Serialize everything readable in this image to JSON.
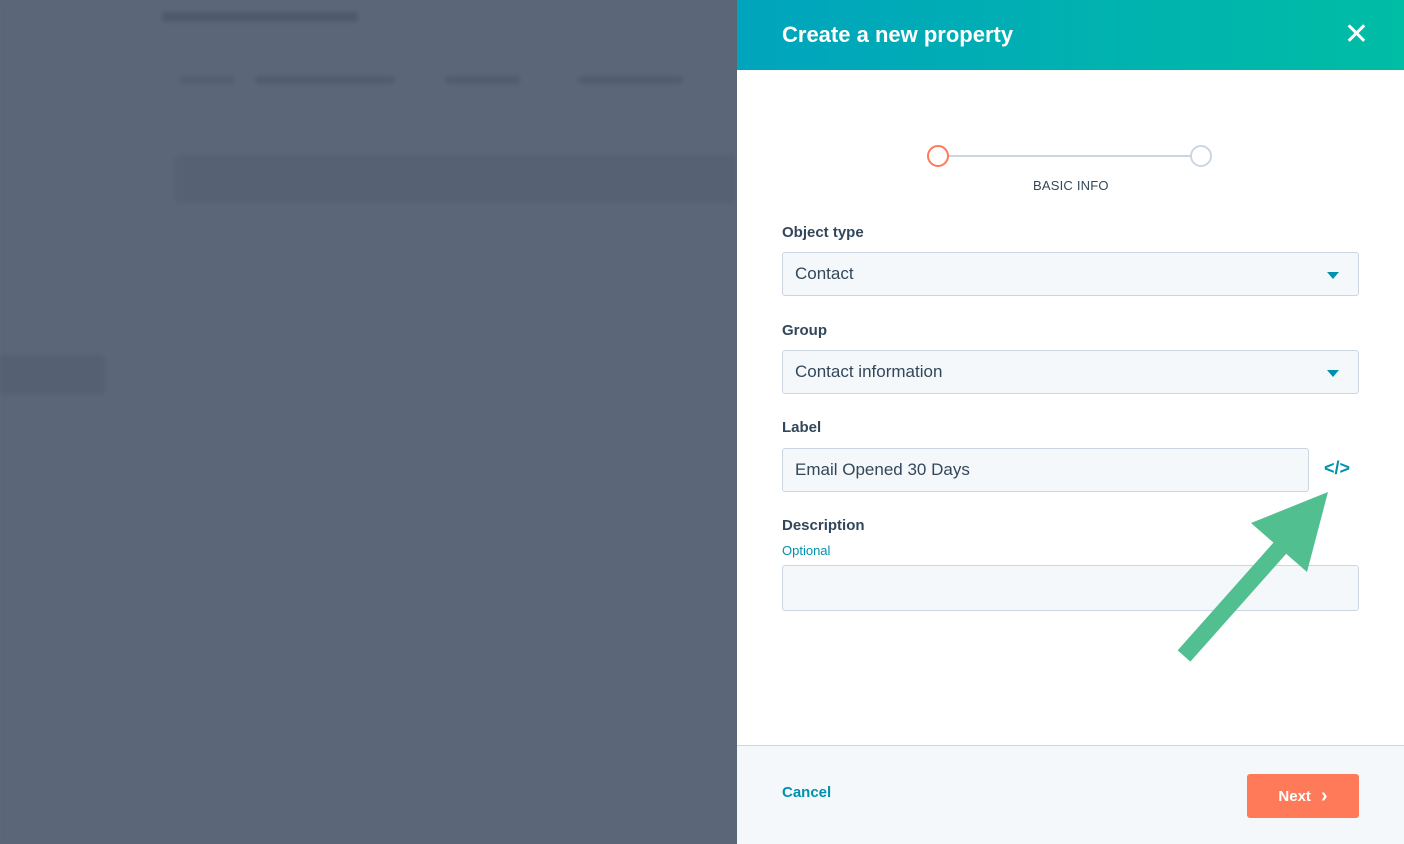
{
  "modal": {
    "title": "Create a new property",
    "close_icon": "close-icon",
    "stepper": {
      "steps": 2,
      "current": 1,
      "current_label": "BASIC INFO"
    },
    "fields": {
      "object_type": {
        "label": "Object type",
        "value": "Contact"
      },
      "group": {
        "label": "Group",
        "value": "Contact information"
      },
      "label": {
        "label": "Label",
        "value": "Email Opened 30 Days",
        "icon": "code-icon",
        "icon_text": "</>"
      },
      "description": {
        "label": "Description",
        "hint": "Optional",
        "value": ""
      }
    },
    "footer": {
      "cancel": "Cancel",
      "next": "Next",
      "next_icon": "›"
    }
  },
  "colors": {
    "header_start": "#00a4bd",
    "header_end": "#00bda5",
    "accent": "#0091ae",
    "next_button": "#ff7a59",
    "step_active": "#ff7a59",
    "annotation_arrow": "#52bf90",
    "overlay": "#5b6778"
  }
}
